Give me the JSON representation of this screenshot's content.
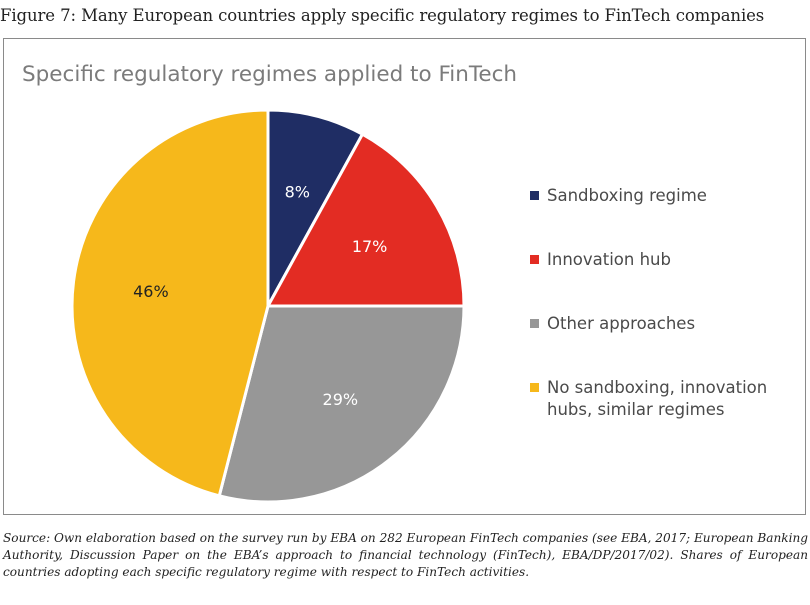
{
  "figure_title": "Figure 7: Many European countries apply specific regulatory regimes to FinTech companies",
  "chart_data": {
    "type": "pie",
    "title": "Specific regulatory regimes applied to FinTech",
    "categories": [
      "Sandboxing regime",
      "Innovation hub",
      "Other approaches",
      "No sandboxing, innovation hubs, similar regimes"
    ],
    "values": [
      8,
      17,
      29,
      46
    ],
    "labels": [
      "8%",
      "17%",
      "29%",
      "46%"
    ],
    "colors": [
      "#1f2d64",
      "#e32c23",
      "#979797",
      "#f6b81b"
    ],
    "label_colors": [
      "#ffffff",
      "#ffffff",
      "#ffffff",
      "#222222"
    ],
    "legend_position": "right",
    "start_angle": "12 o'clock",
    "direction": "clockwise"
  },
  "legend": {
    "lines": [
      [
        "Sandboxing regime"
      ],
      [
        "Innovation hub"
      ],
      [
        "Other approaches"
      ],
      [
        "No sandboxing, innovation",
        "hubs, similar regimes"
      ]
    ]
  },
  "source": "Source: Own elaboration based on the survey run by EBA on 282 European FinTech companies (see EBA, 2017; European Banking Authority, Discussion Paper on the EBA’s approach to financial technology (FinTech), EBA/DP/2017/02). Shares of European countries adopting each specific regulatory regime with respect to FinTech activities."
}
